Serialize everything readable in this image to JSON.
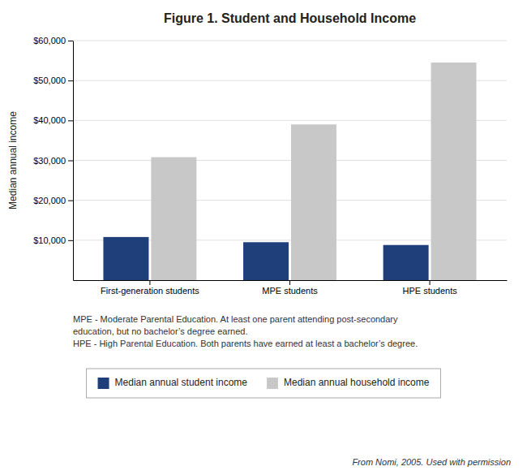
{
  "chart_data": {
    "type": "bar",
    "title": "Figure 1. Student and Household Income",
    "categories": [
      "First-generation students",
      "MPE students",
      "HPE students"
    ],
    "series": [
      {
        "name": "Median annual student income",
        "color": "#1F3F7A",
        "values": [
          10800,
          9500,
          8800
        ]
      },
      {
        "name": "Median annual household income",
        "color": "#C8C8C8",
        "values": [
          30800,
          39000,
          54500
        ]
      }
    ],
    "ylabel": "Median annual income",
    "ylim": [
      0,
      60000
    ],
    "yticks": [
      {
        "value": 10000,
        "label": "$10,000"
      },
      {
        "value": 20000,
        "label": "$20,000"
      },
      {
        "value": 30000,
        "label": "$30,000"
      },
      {
        "value": 40000,
        "label": "$40,000"
      },
      {
        "value": 50000,
        "label": "$50,000"
      },
      {
        "value": 60000,
        "label": "$60,000"
      }
    ],
    "grid": true,
    "legend": "bottom",
    "annotations": [
      "MPE - Moderate Parental Education. At least one parent attending post-secondary",
      "education, but no bachelor’s degree earned.",
      "HPE - High Parental Education. Both parents have earned at least a bachelor’s degree."
    ],
    "source": "From Nomi, 2005. Used with permission"
  }
}
